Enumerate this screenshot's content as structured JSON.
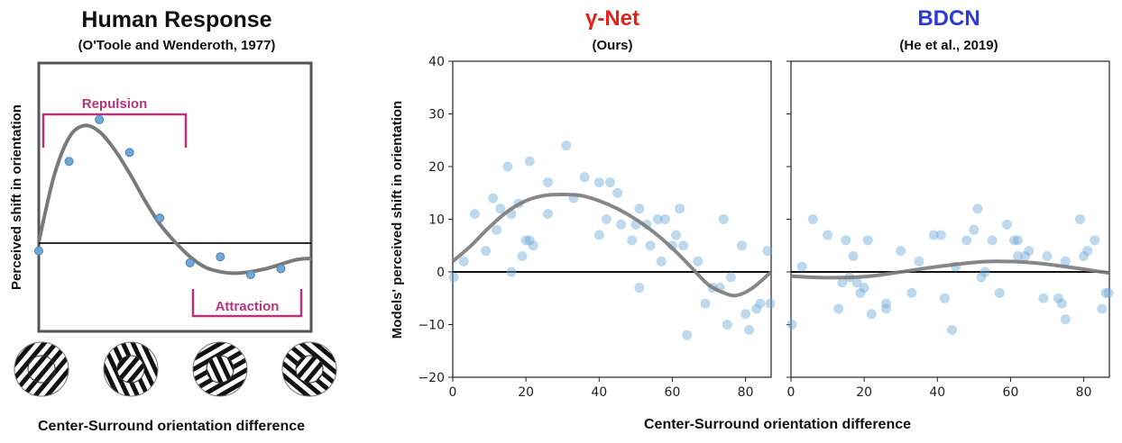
{
  "figure": {
    "bottom_label_left": "Center-Surround orientation difference",
    "bottom_label_right": "Center-Surround orientation difference",
    "shared_ylabel": "Models' perceived shift in orientation",
    "marker_color": "#6fa8d6",
    "curve_color": "#7a7a7a",
    "zero_line_color": "#111111"
  },
  "chart_data": [
    {
      "type": "scatter",
      "title": "Human Response",
      "subtitle": "(O'Toole and Wenderoth, 1977)",
      "ylabel": "Perceived shift in orientation",
      "xlabel": "",
      "annotations": {
        "repulsion": "Repulsion",
        "attraction": "Attraction",
        "annotation_color": "#b8337a"
      },
      "x": [
        0,
        1,
        2,
        3,
        4,
        5,
        6,
        7,
        8
      ],
      "y": [
        -0.3,
        2.7,
        4.1,
        3.0,
        0.8,
        -0.7,
        -0.5,
        -1.1,
        -0.9
      ],
      "xlim": [
        0,
        9
      ],
      "ylim": [
        -3,
        6
      ],
      "curve": {
        "x": [
          0,
          0.5,
          1,
          1.5,
          2,
          2.5,
          3,
          3.5,
          4,
          4.5,
          5,
          5.5,
          6,
          6.5,
          7,
          7.5,
          8,
          8.5,
          9
        ],
        "y": [
          0,
          2.2,
          3.5,
          3.9,
          3.7,
          3.1,
          2.3,
          1.4,
          0.6,
          0.0,
          -0.5,
          -0.85,
          -1.0,
          -1.05,
          -1.0,
          -0.9,
          -0.75,
          -0.6,
          -0.55
        ]
      },
      "grid": false
    },
    {
      "type": "scatter",
      "title": "γ-Net",
      "subtitle": "(Ours)",
      "title_color": "#e0231c",
      "xlabel": "Center-Surround orientation difference",
      "ylabel": "Models' perceived shift in orientation",
      "xlim": [
        0,
        87
      ],
      "ylim": [
        -20,
        40
      ],
      "xticks": [
        0,
        20,
        40,
        60,
        80
      ],
      "yticks": [
        -20,
        -10,
        0,
        10,
        20,
        30,
        40
      ],
      "x": [
        0,
        3,
        6,
        9,
        11,
        12,
        13,
        15,
        16,
        16,
        18,
        19,
        20,
        21,
        21,
        22,
        26,
        26,
        31,
        33,
        36,
        40,
        40,
        42,
        43,
        45,
        46,
        49,
        50,
        51,
        51,
        53,
        54,
        56,
        57,
        58,
        60,
        61,
        62,
        63,
        64,
        67,
        69,
        71,
        73,
        74,
        75,
        76,
        79,
        80,
        81,
        83,
        84,
        86,
        87
      ],
      "y": [
        -1,
        2,
        11,
        4,
        14,
        8,
        12,
        20,
        0,
        11,
        13,
        3,
        6,
        21,
        6,
        5,
        17,
        11,
        24,
        14,
        18,
        7,
        17,
        10,
        17,
        15,
        9,
        6,
        9,
        12,
        -3,
        9,
        5,
        10,
        2,
        10,
        5,
        7,
        12,
        5,
        -12,
        2,
        -6,
        -3,
        -3,
        10,
        -10,
        -1,
        5,
        -8,
        -11,
        -7,
        -6,
        4,
        -6
      ],
      "curve": {
        "x": [
          0,
          5,
          10,
          15,
          20,
          25,
          30,
          35,
          40,
          45,
          50,
          55,
          60,
          65,
          70,
          75,
          78,
          82,
          87
        ],
        "y": [
          2,
          5,
          8.5,
          11.5,
          13.5,
          14.5,
          14.7,
          14.5,
          13.5,
          12,
          10,
          7.5,
          4.5,
          1,
          -2.5,
          -4.2,
          -4.4,
          -3,
          0
        ]
      },
      "grid": false
    },
    {
      "type": "scatter",
      "title": "BDCN",
      "subtitle": "(He et al., 2019)",
      "title_color": "#2e3ad6",
      "xlabel": "Center-Surround orientation difference",
      "ylabel": "",
      "xlim": [
        0,
        87
      ],
      "ylim": [
        -20,
        40
      ],
      "xticks": [
        0,
        20,
        40,
        60,
        80
      ],
      "yticks": [
        -20,
        -10,
        0,
        10,
        20,
        30,
        40
      ],
      "x": [
        0,
        3,
        6,
        10,
        13,
        14,
        15,
        16,
        17,
        18,
        19,
        20,
        21,
        22,
        26,
        26,
        30,
        33,
        35,
        39,
        41,
        42,
        44,
        45,
        48,
        50,
        51,
        52,
        53,
        55,
        57,
        59,
        61,
        62,
        62,
        64,
        65,
        69,
        70,
        73,
        74,
        75,
        75,
        79,
        80,
        81,
        83,
        85,
        86,
        87
      ],
      "y": [
        -10,
        1,
        10,
        7,
        -7,
        -2,
        6,
        -1,
        3,
        -2,
        -4,
        -3,
        6,
        -8,
        -6,
        -7,
        4,
        -4,
        2,
        7,
        7,
        -5,
        -11,
        1,
        6,
        8,
        12,
        -1,
        0,
        6,
        -4,
        9,
        6,
        6,
        3,
        3,
        4,
        -5,
        3,
        -5,
        -6,
        -9,
        2,
        10,
        3,
        4,
        6,
        -7,
        -4,
        -4
      ],
      "curve": {
        "x": [
          0,
          10,
          20,
          30,
          40,
          50,
          56,
          65,
          75,
          87
        ],
        "y": [
          -0.8,
          -1.1,
          -0.9,
          0,
          1,
          1.8,
          2,
          1.8,
          1,
          -0.2
        ]
      },
      "grid": false
    }
  ]
}
